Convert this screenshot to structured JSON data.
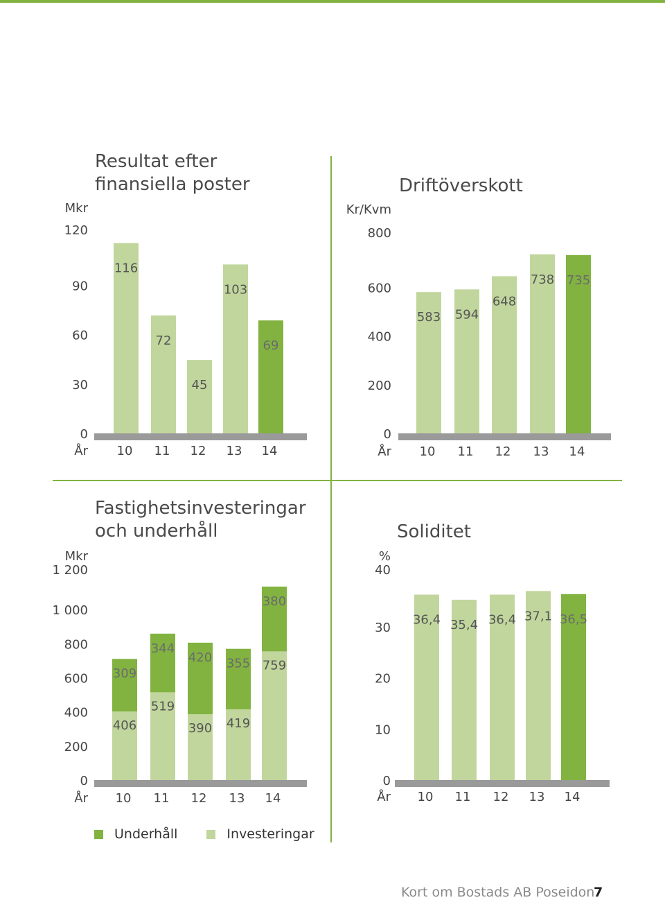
{
  "colors": {
    "accent": "#82b341",
    "light_bar": "#c1d69d",
    "baseline": "#9a9a9a",
    "label_light": "#555555",
    "label_dark": "#6b6b6b"
  },
  "chart_data": [
    {
      "type": "bar",
      "title": "Resultat efter\nfinansiella poster",
      "unit_label": "Mkr",
      "x_axis_label": "År",
      "categories": [
        "10",
        "11",
        "12",
        "13",
        "14"
      ],
      "values": [
        116,
        72,
        45,
        103,
        69
      ],
      "value_labels": [
        "116",
        "72",
        "45",
        "103",
        "69"
      ],
      "highlight_index": 4,
      "ylim": [
        0,
        120
      ],
      "yticks": [
        0,
        30,
        60,
        90,
        120
      ],
      "ytick_labels": [
        "0",
        "30",
        "60",
        "90",
        "120"
      ]
    },
    {
      "type": "bar",
      "title": "Driftöverskott",
      "unit_label": "Kr/Kvm",
      "x_axis_label": "År",
      "categories": [
        "10",
        "11",
        "12",
        "13",
        "14"
      ],
      "values": [
        583,
        594,
        648,
        738,
        735
      ],
      "value_labels": [
        "583",
        "594",
        "648",
        "738",
        "735"
      ],
      "highlight_index": 4,
      "ylim": [
        0,
        800
      ],
      "yticks": [
        0,
        200,
        400,
        600,
        800
      ],
      "ytick_labels": [
        "0",
        "200",
        "400",
        "600",
        "800"
      ]
    },
    {
      "type": "bar",
      "stacked": true,
      "title": "Fastighetsinvesteringar\noch underhåll",
      "unit_label": "Mkr",
      "x_axis_label": "År",
      "categories": [
        "10",
        "11",
        "12",
        "13",
        "14"
      ],
      "series": [
        {
          "name": "Investeringar",
          "values": [
            406,
            519,
            390,
            419,
            759
          ],
          "value_labels": [
            "406",
            "519",
            "390",
            "419",
            "759"
          ]
        },
        {
          "name": "Underhåll",
          "values": [
            309,
            344,
            420,
            355,
            380
          ],
          "value_labels": [
            "309",
            "344",
            "420",
            "355",
            "380"
          ]
        }
      ],
      "ylim": [
        0,
        1200
      ],
      "yticks": [
        0,
        200,
        400,
        600,
        800,
        1000,
        1200
      ],
      "ytick_labels": [
        "0",
        "200",
        "400",
        "600",
        "800",
        "1 000",
        "1 200"
      ]
    },
    {
      "type": "bar",
      "title": "Soliditet",
      "unit_label": "%",
      "x_axis_label": "År",
      "categories": [
        "10",
        "11",
        "12",
        "13",
        "14"
      ],
      "values": [
        36.4,
        35.4,
        36.4,
        37.1,
        36.5
      ],
      "value_labels": [
        "36,4",
        "35,4",
        "36,4",
        "37,1",
        "36,5"
      ],
      "highlight_index": 4,
      "ylim": [
        0,
        40
      ],
      "yticks": [
        0,
        10,
        20,
        30,
        40
      ],
      "ytick_labels": [
        "0",
        "10",
        "20",
        "30",
        "40"
      ]
    }
  ],
  "legend": {
    "underhall": "Underhåll",
    "investeringar": "Investeringar"
  },
  "footer": {
    "text": "Kort om Bostads AB Poseidon",
    "page": "7"
  }
}
